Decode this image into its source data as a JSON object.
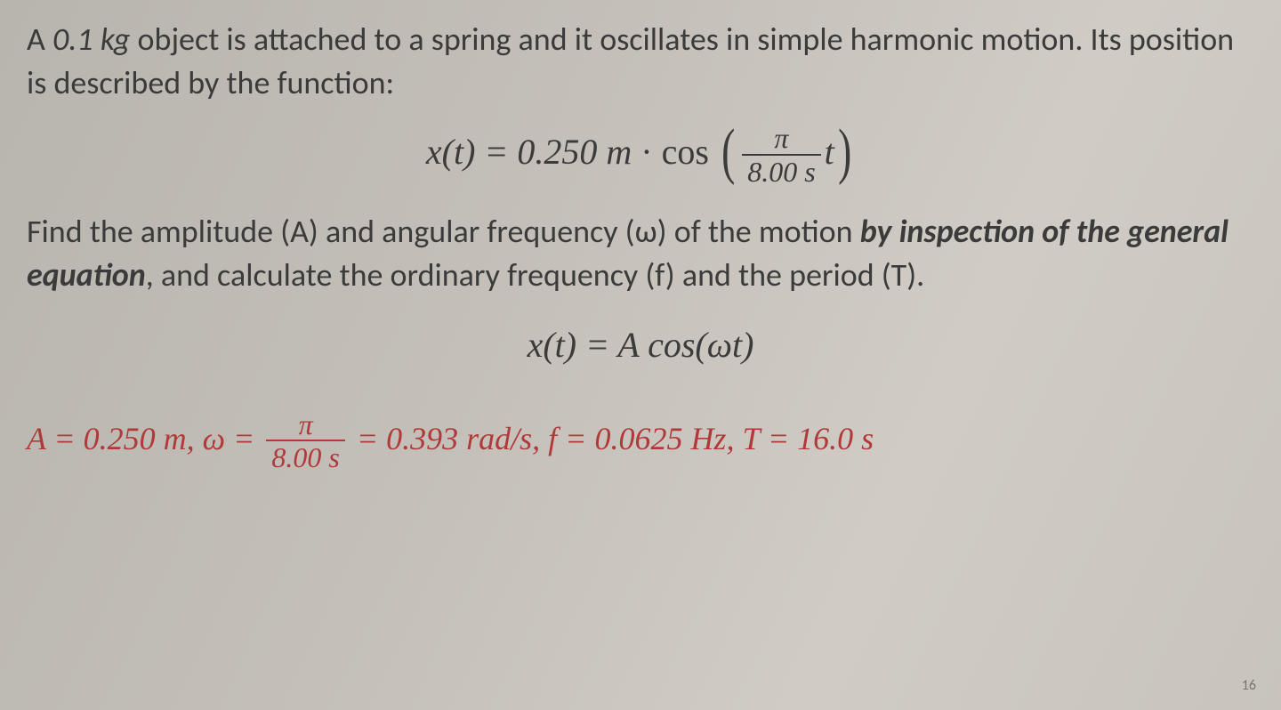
{
  "colors": {
    "text": "#3b3b3b",
    "answer": "#b03a3a",
    "background_gradient": [
      "#b8b4ae",
      "#c4c0b9",
      "#d0ccc5",
      "#c8c4bd"
    ]
  },
  "problem": {
    "line1_a": "A ",
    "mass": "0.1 kg",
    "line1_b": " object is attached to a spring and it oscillates in simple harmonic motion.  Its position is described by the function:"
  },
  "equation1": {
    "lhs": "x(t) = ",
    "amplitude": "0.250 m",
    "cos": " · cos ",
    "frac_num": "π",
    "frac_den": "8.00 s",
    "after_frac": "t"
  },
  "task": {
    "part1": "Find the amplitude (A) and angular frequency (ω) of the motion ",
    "emph": "by inspection of the general equation",
    "part2": ", and calculate the ordinary frequency (f) and the period (T)."
  },
  "general_eq": "x(t) = A cos(ωt)",
  "answer": {
    "A_label": "A = ",
    "A_val": "0.250 m",
    "sep1": ",  ω = ",
    "frac_num": "π",
    "frac_den": "8.00 s",
    "omega_eq": " = 0.393 rad/s",
    "sep2": ", f = ",
    "f_val": "0.0625 Hz",
    "sep3": ", T = ",
    "T_val": "16.0 s"
  },
  "slide_number": "16"
}
